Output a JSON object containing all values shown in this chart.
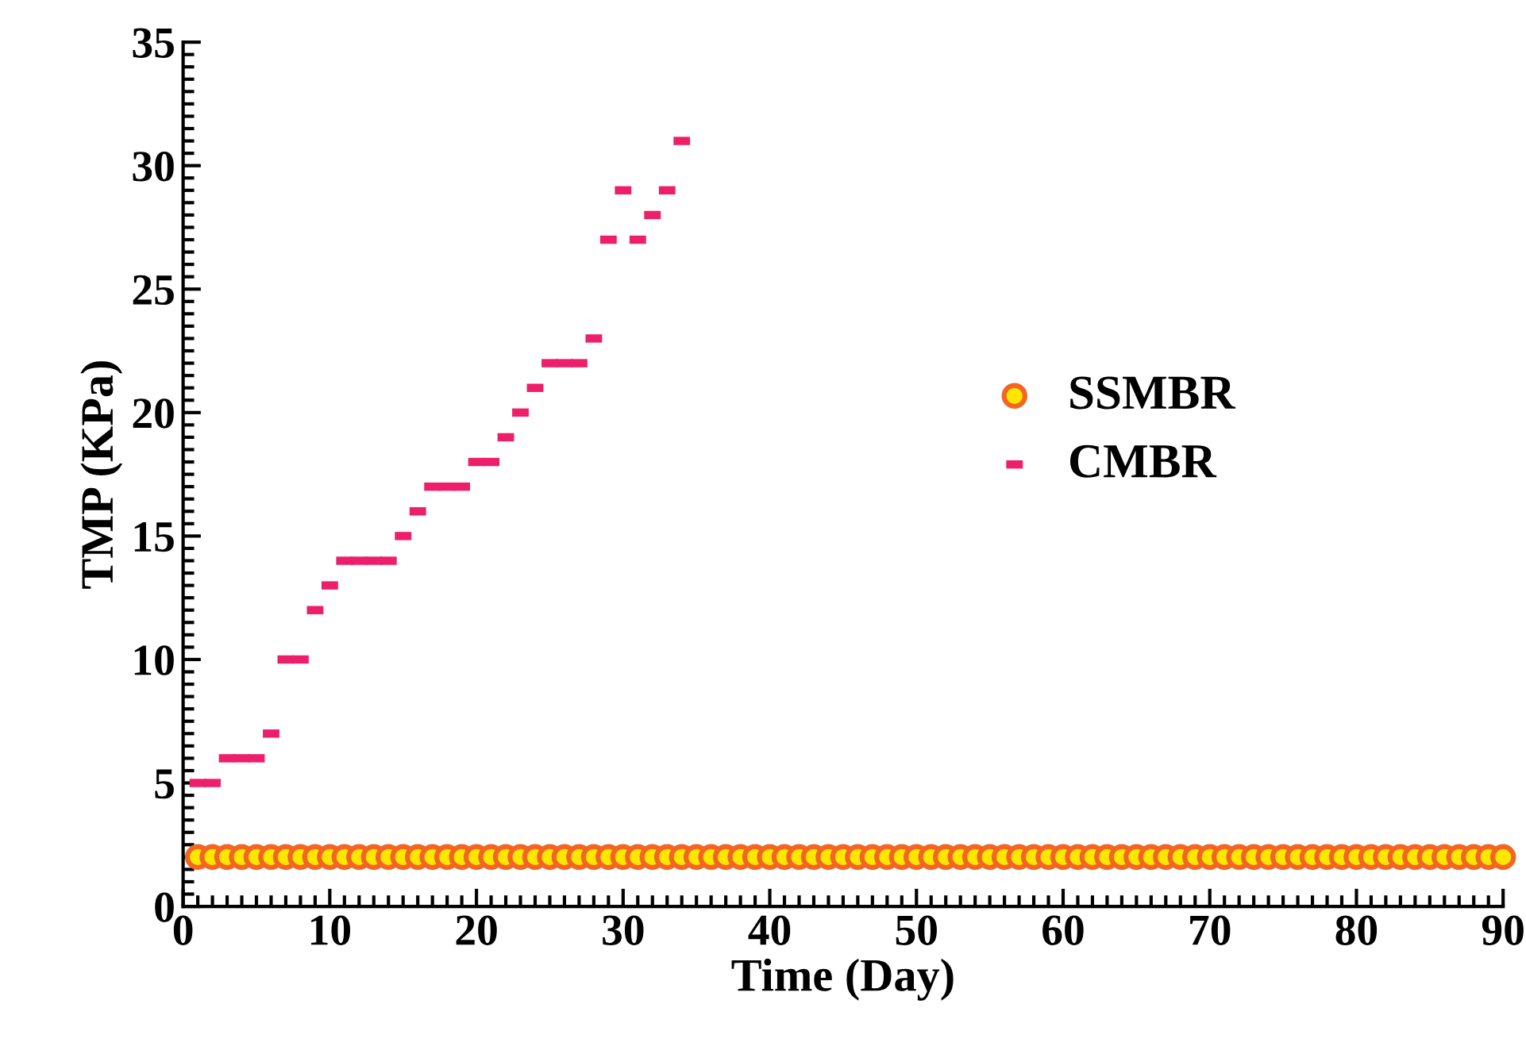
{
  "chart_data": {
    "type": "scatter",
    "xlabel": "Time (Day)",
    "ylabel": "TMP (KPa)",
    "xlim": [
      0,
      90
    ],
    "xticks": [
      0,
      10,
      20,
      30,
      40,
      50,
      60,
      70,
      80,
      90
    ],
    "ylim": [
      0,
      35
    ],
    "yticks": [
      0,
      5,
      10,
      15,
      20,
      25,
      30,
      35
    ],
    "grid": false,
    "legend": "right",
    "series": [
      {
        "name": "SSMBR",
        "color": "#f26522",
        "marker": "circle",
        "x": [
          1,
          2,
          3,
          4,
          5,
          6,
          7,
          8,
          9,
          10,
          11,
          12,
          13,
          14,
          15,
          16,
          17,
          18,
          19,
          20,
          21,
          22,
          23,
          24,
          25,
          26,
          27,
          28,
          29,
          30,
          31,
          32,
          33,
          34,
          35,
          36,
          37,
          38,
          39,
          40,
          41,
          42,
          43,
          44,
          45,
          46,
          47,
          48,
          49,
          50,
          51,
          52,
          53,
          54,
          55,
          56,
          57,
          58,
          59,
          60,
          61,
          62,
          63,
          64,
          65,
          66,
          67,
          68,
          69,
          70,
          71,
          72,
          73,
          74,
          75,
          76,
          77,
          78,
          79,
          80,
          81,
          82,
          83,
          84,
          85,
          86,
          87,
          88,
          89,
          90
        ],
        "values": [
          2,
          2,
          2,
          2,
          2,
          2,
          2,
          2,
          2,
          2,
          2,
          2,
          2,
          2,
          2,
          2,
          2,
          2,
          2,
          2,
          2,
          2,
          2,
          2,
          2,
          2,
          2,
          2,
          2,
          2,
          2,
          2,
          2,
          2,
          2,
          2,
          2,
          2,
          2,
          2,
          2,
          2,
          2,
          2,
          2,
          2,
          2,
          2,
          2,
          2,
          2,
          2,
          2,
          2,
          2,
          2,
          2,
          2,
          2,
          2,
          2,
          2,
          2,
          2,
          2,
          2,
          2,
          2,
          2,
          2,
          2,
          2,
          2,
          2,
          2,
          2,
          2,
          2,
          2,
          2,
          2,
          2,
          2,
          2,
          2,
          2,
          2,
          2,
          2,
          2
        ]
      },
      {
        "name": "CMBR",
        "color": "#ee1f6a",
        "marker": "square",
        "x": [
          1,
          2,
          3,
          4,
          5,
          6,
          7,
          8,
          9,
          10,
          11,
          12,
          13,
          14,
          15,
          16,
          17,
          18,
          19,
          20,
          21,
          22,
          23,
          24,
          25,
          26,
          27,
          28,
          29,
          30,
          31,
          32,
          33,
          34
        ],
        "values": [
          5,
          5,
          6,
          6,
          6,
          7,
          10,
          10,
          12,
          13,
          14,
          14,
          14,
          14,
          15,
          16,
          17,
          17,
          17,
          18,
          18,
          19,
          20,
          21,
          22,
          22,
          22,
          23,
          27,
          29,
          27,
          28,
          29,
          31
        ]
      }
    ]
  }
}
